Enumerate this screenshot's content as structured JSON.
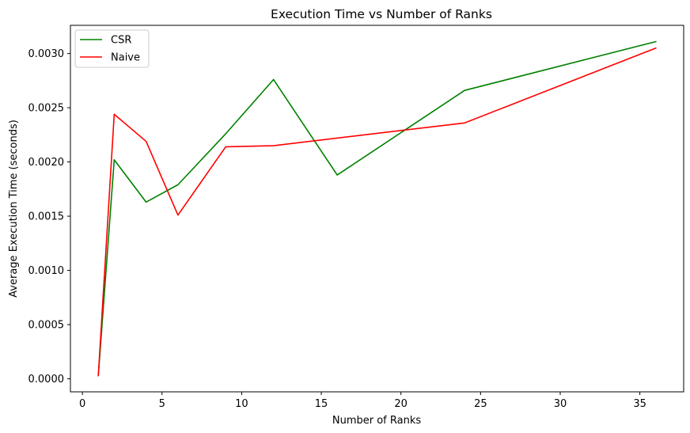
{
  "chart_data": {
    "type": "line",
    "title": "Execution Time vs Number of Ranks",
    "xlabel": "Number of Ranks",
    "ylabel": "Average Execution Time (seconds)",
    "xlim": [
      -0.75,
      37.75
    ],
    "ylim": [
      -0.00012,
      0.00326
    ],
    "xticks": [
      0,
      5,
      10,
      15,
      20,
      25,
      30,
      35
    ],
    "yticks": [
      0.0,
      0.0005,
      0.001,
      0.0015,
      0.002,
      0.0025,
      0.003
    ],
    "xtick_labels": [
      "0",
      "5",
      "10",
      "15",
      "20",
      "25",
      "30",
      "35"
    ],
    "ytick_labels": [
      "0.0000",
      "0.0005",
      "0.0010",
      "0.0015",
      "0.0020",
      "0.0025",
      "0.0030"
    ],
    "grid": false,
    "legend_position": "top-left",
    "series": [
      {
        "name": "CSR",
        "color": "#008000",
        "x": [
          1,
          2,
          4,
          6,
          9,
          12,
          16,
          24,
          36
        ],
        "y": [
          3e-05,
          0.00202,
          0.00163,
          0.00179,
          0.00226,
          0.00276,
          0.00188,
          0.00266,
          0.00311
        ]
      },
      {
        "name": "Naive",
        "color": "#ff0000",
        "x": [
          1,
          2,
          4,
          6,
          9,
          12,
          24,
          36
        ],
        "y": [
          3e-05,
          0.00244,
          0.00219,
          0.00151,
          0.00214,
          0.00215,
          0.00236,
          0.00305
        ]
      }
    ]
  }
}
